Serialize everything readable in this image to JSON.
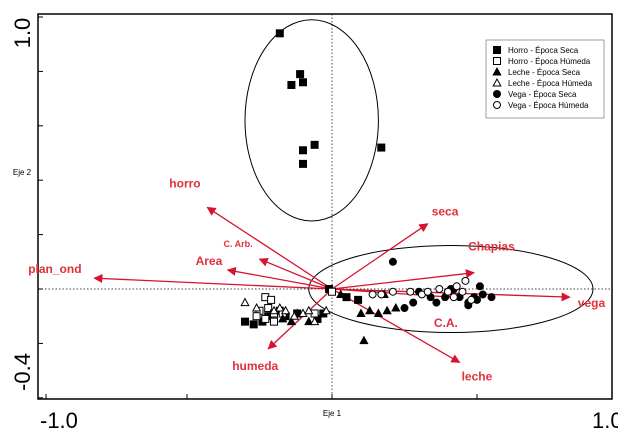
{
  "chart_data": {
    "type": "scatter",
    "subtype": "biplot",
    "xlabel": "Eje 1",
    "ylabel": "Eje 2",
    "xlim": [
      -1.0,
      1.0
    ],
    "ylim": [
      -0.4,
      1.0
    ],
    "x_tick_labels": [
      "-1.0",
      "1.0"
    ],
    "y_tick_labels": [
      "1.0",
      "-0.4"
    ],
    "legend": [
      {
        "name": "Horro - Época Seca",
        "marker": "square-filled"
      },
      {
        "name": "Horro - Época Húmeda",
        "marker": "square-open"
      },
      {
        "name": "Leche - Época Seca",
        "marker": "triangle-filled"
      },
      {
        "name": "Leche - Época Húmeda",
        "marker": "triangle-open"
      },
      {
        "name": "Vega - Época Seca",
        "marker": "circle-filled"
      },
      {
        "name": "Vega - Época Húmeda",
        "marker": "circle-open"
      }
    ],
    "legend_position": "top-right",
    "arrows": [
      {
        "label": "horro",
        "x": -0.43,
        "y": 0.3
      },
      {
        "label": "seca",
        "x": 0.33,
        "y": 0.24
      },
      {
        "label": "C. Arb.",
        "x": -0.25,
        "y": 0.11
      },
      {
        "label": "Area",
        "x": -0.36,
        "y": 0.07
      },
      {
        "label": "plan_ond",
        "x": -0.82,
        "y": 0.04
      },
      {
        "label": "Chapias",
        "x": 0.49,
        "y": 0.06
      },
      {
        "label": "vega",
        "x": 0.82,
        "y": -0.03
      },
      {
        "label": "C.A.",
        "x": 0.41,
        "y": -0.03
      },
      {
        "label": "humeda",
        "x": -0.22,
        "y": -0.22
      },
      {
        "label": "leche",
        "x": 0.44,
        "y": -0.27
      }
    ],
    "ellipses": [
      {
        "group": "Horro - Época Seca",
        "center": [
          -0.07,
          0.62
        ],
        "radii": [
          0.23,
          0.37
        ]
      },
      {
        "group": "Vega",
        "center": [
          0.41,
          0.0
        ],
        "radii": [
          0.49,
          0.16
        ]
      }
    ],
    "series": [
      {
        "name": "Horro - Época Seca",
        "marker": "square-filled",
        "points": [
          [
            -0.18,
            0.94
          ],
          [
            -0.11,
            0.79
          ],
          [
            -0.14,
            0.75
          ],
          [
            -0.1,
            0.76
          ],
          [
            -0.06,
            0.53
          ],
          [
            -0.1,
            0.51
          ],
          [
            -0.1,
            0.46
          ],
          [
            0.17,
            0.52
          ],
          [
            -0.01,
            0.0
          ],
          [
            -0.18,
            -0.08
          ],
          [
            -0.2,
            -0.09
          ],
          [
            -0.22,
            -0.1
          ],
          [
            -0.24,
            -0.12
          ],
          [
            -0.27,
            -0.13
          ],
          [
            -0.3,
            -0.12
          ],
          [
            -0.16,
            -0.1
          ],
          [
            -0.12,
            -0.09
          ],
          [
            -0.05,
            -0.11
          ],
          [
            -0.03,
            -0.09
          ],
          [
            0.05,
            -0.03
          ],
          [
            0.09,
            -0.04
          ]
        ]
      },
      {
        "name": "Horro - Época Húmeda",
        "marker": "square-open",
        "points": [
          [
            -0.23,
            -0.03
          ],
          [
            -0.21,
            -0.04
          ],
          [
            -0.22,
            -0.07
          ],
          [
            -0.2,
            -0.09
          ],
          [
            -0.25,
            -0.08
          ],
          [
            -0.26,
            -0.1
          ],
          [
            -0.23,
            -0.11
          ],
          [
            -0.2,
            -0.12
          ],
          [
            -0.17,
            -0.09
          ],
          [
            0.0,
            -0.01
          ],
          [
            -0.06,
            -0.09
          ]
        ]
      },
      {
        "name": "Leche - Época Seca",
        "marker": "triangle-filled",
        "points": [
          [
            -0.17,
            -0.11
          ],
          [
            -0.14,
            -0.12
          ],
          [
            -0.12,
            -0.09
          ],
          [
            -0.08,
            -0.12
          ],
          [
            0.1,
            -0.09
          ],
          [
            0.13,
            -0.08
          ],
          [
            0.16,
            -0.09
          ],
          [
            0.19,
            -0.08
          ],
          [
            0.11,
            -0.19
          ],
          [
            0.22,
            -0.07
          ],
          [
            0.03,
            -0.02
          ],
          [
            0.18,
            -0.02
          ]
        ]
      },
      {
        "name": "Leche - Época Húmeda",
        "marker": "triangle-open",
        "points": [
          [
            -0.3,
            -0.05
          ],
          [
            -0.26,
            -0.07
          ],
          [
            -0.18,
            -0.07
          ],
          [
            -0.16,
            -0.08
          ],
          [
            -0.1,
            -0.09
          ],
          [
            -0.08,
            -0.08
          ],
          [
            -0.02,
            -0.08
          ],
          [
            -0.06,
            -0.12
          ],
          [
            -0.13,
            -0.1
          ],
          [
            -0.2,
            -0.08
          ]
        ]
      },
      {
        "name": "Vega - Época Seca",
        "marker": "circle-filled",
        "points": [
          [
            0.21,
            0.1
          ],
          [
            0.3,
            -0.01
          ],
          [
            0.34,
            -0.03
          ],
          [
            0.36,
            -0.05
          ],
          [
            0.39,
            -0.03
          ],
          [
            0.4,
            -0.01
          ],
          [
            0.42,
            0.0
          ],
          [
            0.44,
            -0.03
          ],
          [
            0.47,
            -0.05
          ],
          [
            0.49,
            -0.03
          ],
          [
            0.5,
            -0.04
          ],
          [
            0.52,
            -0.02
          ],
          [
            0.55,
            -0.03
          ],
          [
            0.47,
            -0.06
          ],
          [
            0.28,
            -0.05
          ],
          [
            0.25,
            -0.07
          ],
          [
            0.41,
            0.0
          ],
          [
            0.51,
            0.01
          ]
        ]
      },
      {
        "name": "Vega - Época Húmeda",
        "marker": "circle-open",
        "points": [
          [
            0.14,
            -0.02
          ],
          [
            0.17,
            -0.02
          ],
          [
            0.21,
            -0.01
          ],
          [
            0.27,
            -0.01
          ],
          [
            0.31,
            -0.02
          ],
          [
            0.33,
            -0.01
          ],
          [
            0.37,
            0.0
          ],
          [
            0.4,
            -0.01
          ],
          [
            0.42,
            -0.03
          ],
          [
            0.45,
            -0.01
          ],
          [
            0.46,
            0.03
          ],
          [
            0.48,
            -0.04
          ],
          [
            0.43,
            0.01
          ]
        ]
      }
    ]
  }
}
